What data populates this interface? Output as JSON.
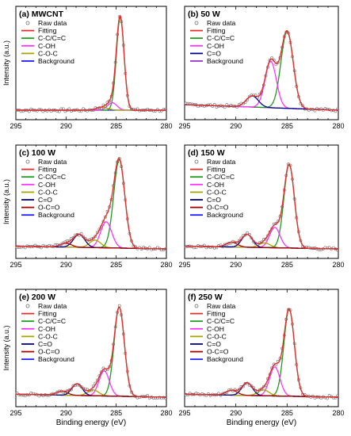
{
  "chart_data": [
    {
      "type": "line",
      "title": "(a) MWCNT",
      "xlabel": "",
      "ylabel": "Intensity (a.u.)",
      "xlim": [
        295,
        280
      ],
      "x_ticks": [
        "295",
        "290",
        "285",
        "280"
      ],
      "legend_position": "top-left",
      "legend": [
        {
          "label": "Raw data",
          "marker": "circle",
          "color": "#6b6b6b"
        },
        {
          "label": "Fitting",
          "color": "#e53030"
        },
        {
          "label": "C-C/C=C",
          "color": "#1f9a1f"
        },
        {
          "label": "C-OH",
          "color": "#ff33ff"
        },
        {
          "label": "C-O-C",
          "color": "#a6a600"
        },
        {
          "label": "Background",
          "color": "#1a1aff"
        }
      ],
      "peaks": [
        {
          "component": "C-C/C=C",
          "center": 284.6,
          "height": 1.0,
          "fwhm": 0.9
        },
        {
          "component": "C-OH",
          "center": 285.4,
          "height": 0.08,
          "fwhm": 1.1
        },
        {
          "component": "C-O-C",
          "center": 286.4,
          "height": 0.03,
          "fwhm": 1.4
        }
      ],
      "background": {
        "start": 0.0,
        "end": 0.0
      }
    },
    {
      "type": "line",
      "title": "(b) 50 W",
      "xlabel": "",
      "ylabel": "",
      "xlim": [
        295,
        280
      ],
      "x_ticks": [
        "295",
        "290",
        "285",
        "280"
      ],
      "legend_position": "top-left",
      "legend": [
        {
          "label": "Raw data",
          "marker": "circle",
          "color": "#6b6b6b"
        },
        {
          "label": "Fitting",
          "color": "#e53030"
        },
        {
          "label": "C-C/C=C",
          "color": "#1f9a1f"
        },
        {
          "label": "C-OH",
          "color": "#ff33ff"
        },
        {
          "label": "C=O",
          "color": "#00008b"
        },
        {
          "label": "Background",
          "color": "#9933cc"
        }
      ],
      "peaks": [
        {
          "component": "C-C/C=C",
          "center": 285.0,
          "height": 0.83,
          "fwhm": 1.4
        },
        {
          "component": "C-OH",
          "center": 286.6,
          "height": 0.5,
          "fwhm": 1.3
        },
        {
          "component": "C=O",
          "center": 288.4,
          "height": 0.12,
          "fwhm": 1.4
        }
      ],
      "background": {
        "start": 0.06,
        "end": 0.0
      }
    },
    {
      "type": "line",
      "title": "(c) 100 W",
      "xlabel": "",
      "ylabel": "Intensity (a.u.)",
      "xlim": [
        295,
        280
      ],
      "x_ticks": [
        "295",
        "290",
        "285",
        "280"
      ],
      "legend_position": "top-left",
      "legend": [
        {
          "label": "Raw data",
          "marker": "circle",
          "color": "#6b6b6b"
        },
        {
          "label": "Fitting",
          "color": "#e53030"
        },
        {
          "label": "C-C/C=C",
          "color": "#1f9a1f"
        },
        {
          "label": "C-OH",
          "color": "#ff33ff"
        },
        {
          "label": "C-O-C",
          "color": "#a6a600"
        },
        {
          "label": "C=O",
          "color": "#00008b"
        },
        {
          "label": "O-C=O",
          "color": "#aa0000"
        },
        {
          "label": "Background",
          "color": "#1a1aff"
        }
      ],
      "peaks": [
        {
          "component": "C-C/C=C",
          "center": 284.7,
          "height": 0.95,
          "fwhm": 1.3
        },
        {
          "component": "C-OH",
          "center": 286.0,
          "height": 0.28,
          "fwhm": 1.3
        },
        {
          "component": "C-O-C",
          "center": 287.1,
          "height": 0.08,
          "fwhm": 1.3
        },
        {
          "component": "C=O",
          "center": 288.7,
          "height": 0.14,
          "fwhm": 1.3
        },
        {
          "component": "O-C=O",
          "center": 290.0,
          "height": 0.04,
          "fwhm": 1.3
        }
      ],
      "background": {
        "start": 0.03,
        "end": 0.0
      }
    },
    {
      "type": "line",
      "title": "(d) 150 W",
      "xlabel": "",
      "ylabel": "",
      "xlim": [
        295,
        280
      ],
      "x_ticks": [
        "295",
        "290",
        "285",
        "280"
      ],
      "legend_position": "top-left",
      "legend": [
        {
          "label": "Raw data",
          "marker": "circle",
          "color": "#6b6b6b"
        },
        {
          "label": "Fitting",
          "color": "#e53030"
        },
        {
          "label": "C-C/C=C",
          "color": "#1f9a1f"
        },
        {
          "label": "C-OH",
          "color": "#ff33ff"
        },
        {
          "label": "C-O-C",
          "color": "#a6a600"
        },
        {
          "label": "C=O",
          "color": "#00008b"
        },
        {
          "label": "O-C=O",
          "color": "#aa0000"
        },
        {
          "label": "Background",
          "color": "#1a1aff"
        }
      ],
      "peaks": [
        {
          "component": "C-C/C=C",
          "center": 284.8,
          "height": 0.9,
          "fwhm": 1.2
        },
        {
          "component": "C-OH",
          "center": 286.2,
          "height": 0.22,
          "fwhm": 1.2
        },
        {
          "component": "C-O-C",
          "center": 287.2,
          "height": 0.05,
          "fwhm": 1.3
        },
        {
          "component": "C=O",
          "center": 288.9,
          "height": 0.14,
          "fwhm": 1.2
        },
        {
          "component": "O-C=O",
          "center": 290.4,
          "height": 0.05,
          "fwhm": 1.3
        }
      ],
      "background": {
        "start": 0.03,
        "end": 0.0
      }
    },
    {
      "type": "line",
      "title": "(e) 200 W",
      "xlabel": "Binding energy (eV)",
      "ylabel": "Intensity (a.u.)",
      "xlim": [
        295,
        280
      ],
      "x_ticks": [
        "295",
        "290",
        "285",
        "280"
      ],
      "legend_position": "top-left",
      "legend": [
        {
          "label": "Raw data",
          "marker": "circle",
          "color": "#6b6b6b"
        },
        {
          "label": "Fitting",
          "color": "#e53030"
        },
        {
          "label": "C-C/C=C",
          "color": "#1f9a1f"
        },
        {
          "label": "C-OH",
          "color": "#ff33ff"
        },
        {
          "label": "C-O-C",
          "color": "#a6a600"
        },
        {
          "label": "C=O",
          "color": "#00008b"
        },
        {
          "label": "O-C=O",
          "color": "#aa0000"
        },
        {
          "label": "Background",
          "color": "#1a1aff"
        }
      ],
      "peaks": [
        {
          "component": "C-C/C=C",
          "center": 284.7,
          "height": 0.92,
          "fwhm": 1.2
        },
        {
          "component": "C-OH",
          "center": 286.2,
          "height": 0.26,
          "fwhm": 1.2
        },
        {
          "component": "C-O-C",
          "center": 287.3,
          "height": 0.06,
          "fwhm": 1.3
        },
        {
          "component": "C=O",
          "center": 288.9,
          "height": 0.12,
          "fwhm": 1.2
        },
        {
          "component": "O-C=O",
          "center": 290.4,
          "height": 0.04,
          "fwhm": 1.3
        }
      ],
      "background": {
        "start": 0.03,
        "end": 0.0
      }
    },
    {
      "type": "line",
      "title": "(f) 250 W",
      "xlabel": "Binding energy (eV)",
      "ylabel": "",
      "xlim": [
        295,
        280
      ],
      "x_ticks": [
        "295",
        "290",
        "285",
        "280"
      ],
      "legend_position": "top-left",
      "legend": [
        {
          "label": "Raw data",
          "marker": "circle",
          "color": "#6b6b6b"
        },
        {
          "label": "Fitting",
          "color": "#e53030"
        },
        {
          "label": "C-C/C=C",
          "color": "#1f9a1f"
        },
        {
          "label": "C-OH",
          "color": "#ff33ff"
        },
        {
          "label": "C-O-C",
          "color": "#a6a600"
        },
        {
          "label": "C=O",
          "color": "#00008b"
        },
        {
          "label": "O-C=O",
          "color": "#aa0000"
        },
        {
          "label": "Background",
          "color": "#1a1aff"
        }
      ],
      "peaks": [
        {
          "component": "C-C/C=C",
          "center": 284.8,
          "height": 0.9,
          "fwhm": 1.2
        },
        {
          "component": "C-OH",
          "center": 286.2,
          "height": 0.3,
          "fwhm": 1.2
        },
        {
          "component": "C-O-C",
          "center": 287.3,
          "height": 0.06,
          "fwhm": 1.3
        },
        {
          "component": "C=O",
          "center": 288.9,
          "height": 0.13,
          "fwhm": 1.2
        },
        {
          "component": "O-C=O",
          "center": 290.4,
          "height": 0.05,
          "fwhm": 1.3
        }
      ],
      "background": {
        "start": 0.03,
        "end": 0.0
      }
    }
  ]
}
